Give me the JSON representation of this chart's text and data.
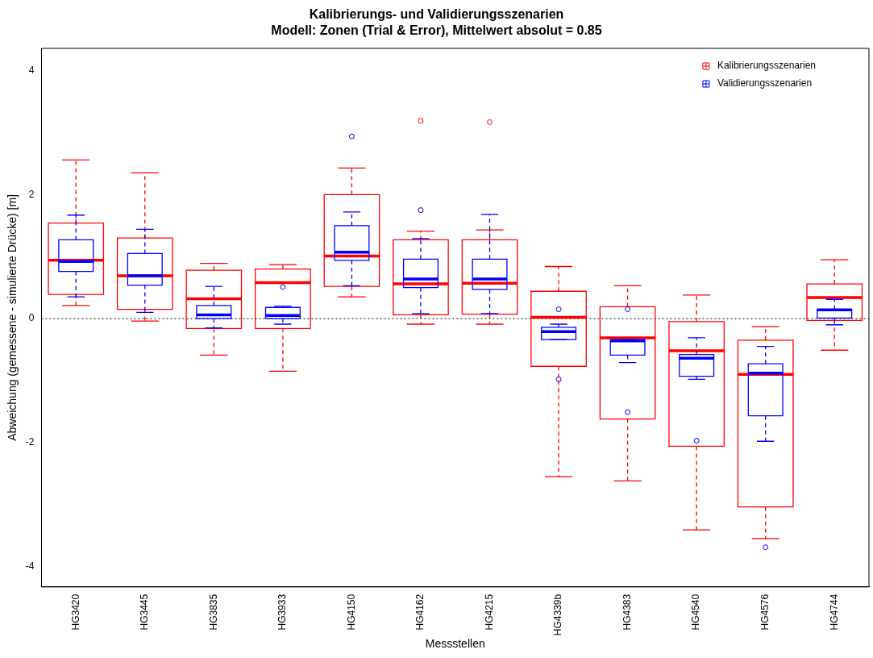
{
  "chart_data": {
    "type": "box",
    "title": "Kalibrierungs- und Validierungsszenarien",
    "subtitle": "Modell: Zonen (Trial & Error),  Mittelwert absolut = 0.85",
    "xlabel": "Messstellen",
    "ylabel": "Abweichung (gemessene - simulierte Drücke) [m]",
    "categories": [
      "HG3420",
      "HG3445",
      "HG3835",
      "HG3933",
      "HG4150",
      "HG4162",
      "HG4215",
      "HG4339b",
      "HG4383",
      "HG4540",
      "HG4576",
      "HG4744"
    ],
    "series": [
      {
        "name": "Kalibrierungsszenarien",
        "color": "#ff0000",
        "boxes": [
          {
            "low": 0.21,
            "q1": 0.39,
            "median": 0.94,
            "q3": 1.54,
            "high": 2.56
          },
          {
            "low": -0.04,
            "q1": 0.15,
            "median": 0.69,
            "q3": 1.3,
            "high": 2.35
          },
          {
            "low": -0.59,
            "q1": -0.16,
            "median": 0.32,
            "q3": 0.78,
            "high": 0.89
          },
          {
            "low": -0.85,
            "q1": -0.16,
            "median": 0.58,
            "q3": 0.8,
            "high": 0.87
          },
          {
            "low": 0.35,
            "q1": 0.52,
            "median": 1.01,
            "q3": 2.0,
            "high": 2.43
          },
          {
            "low": -0.09,
            "q1": 0.06,
            "median": 0.56,
            "q3": 1.27,
            "high": 1.41,
            "outliers": [
              3.19
            ]
          },
          {
            "low": -0.09,
            "q1": 0.07,
            "median": 0.57,
            "q3": 1.27,
            "high": 1.43,
            "outliers": [
              3.17
            ]
          },
          {
            "low": -2.55,
            "q1": -0.77,
            "median": 0.02,
            "q3": 0.44,
            "high": 0.84
          },
          {
            "low": -2.62,
            "q1": -1.62,
            "median": -0.31,
            "q3": 0.19,
            "high": 0.53
          },
          {
            "low": -3.41,
            "q1": -2.06,
            "median": -0.52,
            "q3": -0.05,
            "high": 0.38
          },
          {
            "low": -3.55,
            "q1": -3.04,
            "median": -0.9,
            "q3": -0.35,
            "high": -0.13
          },
          {
            "low": -0.51,
            "q1": -0.03,
            "median": 0.34,
            "q3": 0.56,
            "high": 0.95
          }
        ]
      },
      {
        "name": "Validierungsszenarien",
        "color": "#0000ff",
        "boxes": [
          {
            "low": 0.35,
            "q1": 0.76,
            "median": 0.92,
            "q3": 1.27,
            "high": 1.67
          },
          {
            "low": 0.1,
            "q1": 0.54,
            "median": 0.69,
            "q3": 1.05,
            "high": 1.44
          },
          {
            "low": -0.15,
            "q1": 0.0,
            "median": 0.06,
            "q3": 0.21,
            "high": 0.52
          },
          {
            "low": -0.09,
            "q1": 0.0,
            "median": 0.05,
            "q3": 0.18,
            "high": 0.2,
            "outliers": [
              0.51
            ]
          },
          {
            "low": 0.53,
            "q1": 0.94,
            "median": 1.07,
            "q3": 1.5,
            "high": 1.72,
            "outliers": [
              2.94
            ]
          },
          {
            "low": 0.08,
            "q1": 0.5,
            "median": 0.64,
            "q3": 0.96,
            "high": 1.29,
            "outliers": [
              1.75
            ]
          },
          {
            "low": 0.08,
            "q1": 0.47,
            "median": 0.64,
            "q3": 0.96,
            "high": 1.68
          },
          {
            "low": -0.34,
            "q1": -0.34,
            "median": -0.21,
            "q3": -0.14,
            "high": -0.09,
            "outliers": [
              0.15,
              -0.98
            ]
          },
          {
            "low": -0.71,
            "q1": -0.59,
            "median": -0.36,
            "q3": -0.34,
            "high": -0.34,
            "outliers": [
              0.15,
              -1.51
            ]
          },
          {
            "low": -0.98,
            "q1": -0.93,
            "median": -0.64,
            "q3": -0.58,
            "high": -0.31,
            "outliers": [
              -1.97
            ]
          },
          {
            "low": -1.98,
            "q1": -1.57,
            "median": -0.88,
            "q3": -0.73,
            "high": -0.45,
            "outliers": [
              -3.69
            ]
          },
          {
            "low": -0.1,
            "q1": 0.01,
            "median": 0.14,
            "q3": 0.15,
            "high": 0.31
          }
        ]
      }
    ],
    "ylim": [
      -4.33,
      4.36
    ],
    "yticks": [
      -4,
      -2,
      0,
      2,
      4
    ],
    "ref_lines": [
      {
        "axis": "y",
        "value": 0,
        "color": "#000000",
        "line_style": "dotted"
      }
    ],
    "legend": "top right",
    "grid": false
  }
}
